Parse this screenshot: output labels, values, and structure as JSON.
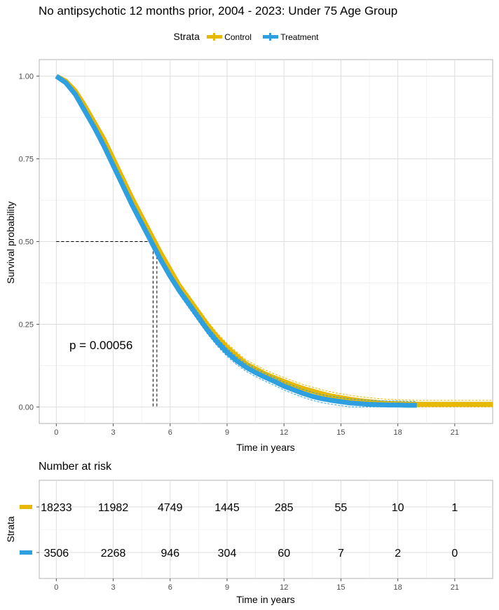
{
  "title": "No antipsychotic 12 months prior, 2004 - 2023: Under 75 Age Group",
  "legend": {
    "title": "Strata",
    "items": [
      {
        "label": "Control",
        "color": "#E7B800"
      },
      {
        "label": "Treatment",
        "color": "#2E9FDF"
      }
    ]
  },
  "chart_data": {
    "type": "line",
    "subtype": "kaplan-meier survival curve",
    "xlabel": "Time in years",
    "ylabel": "Survival probability",
    "xlim": [
      -0.9,
      23.0
    ],
    "ylim": [
      -0.05,
      1.05
    ],
    "x_ticks": [
      0,
      3,
      6,
      9,
      12,
      15,
      18,
      21
    ],
    "x_tick_labels": [
      "0",
      "3",
      "6",
      "9",
      "12",
      "15",
      "18",
      "21"
    ],
    "y_ticks": [
      0,
      0.25,
      0.5,
      0.75,
      1.0
    ],
    "y_tick_labels": [
      "0.00",
      "0.25",
      "0.50",
      "0.75",
      "1.00"
    ],
    "grid": true,
    "legend_position": "top",
    "series": [
      {
        "name": "Control",
        "color": "#E7B800",
        "x": [
          0,
          0.5,
          1,
          1.5,
          2,
          2.5,
          3,
          3.5,
          4,
          4.5,
          5,
          5.5,
          6,
          6.5,
          7,
          7.5,
          8,
          8.5,
          9,
          9.5,
          10,
          10.5,
          11,
          11.5,
          12,
          12.5,
          13,
          13.5,
          14,
          14.5,
          15,
          15.5,
          16,
          16.5,
          17,
          17.5,
          18,
          18.5,
          19,
          20,
          21,
          22,
          23
        ],
        "y": [
          1.0,
          0.985,
          0.955,
          0.91,
          0.86,
          0.81,
          0.75,
          0.69,
          0.63,
          0.575,
          0.52,
          0.465,
          0.415,
          0.365,
          0.325,
          0.285,
          0.245,
          0.21,
          0.18,
          0.155,
          0.13,
          0.115,
          0.1,
          0.088,
          0.077,
          0.066,
          0.056,
          0.048,
          0.04,
          0.033,
          0.028,
          0.023,
          0.019,
          0.016,
          0.013,
          0.011,
          0.01,
          0.009,
          0.008,
          0.008,
          0.008,
          0.008,
          0.008
        ]
      },
      {
        "name": "Treatment",
        "color": "#2E9FDF",
        "x": [
          0,
          0.5,
          1,
          1.5,
          2,
          2.5,
          3,
          3.5,
          4,
          4.5,
          5,
          5.5,
          6,
          6.5,
          7,
          7.5,
          8,
          8.5,
          9,
          9.5,
          10,
          10.5,
          11,
          11.5,
          12,
          12.5,
          13,
          13.5,
          14,
          14.5,
          15,
          15.5,
          16,
          16.5,
          17,
          17.5,
          18,
          18.5,
          19
        ],
        "y": [
          1.0,
          0.98,
          0.945,
          0.895,
          0.845,
          0.79,
          0.73,
          0.67,
          0.61,
          0.555,
          0.5,
          0.445,
          0.395,
          0.35,
          0.31,
          0.27,
          0.23,
          0.195,
          0.165,
          0.14,
          0.12,
          0.104,
          0.09,
          0.077,
          0.063,
          0.052,
          0.041,
          0.032,
          0.025,
          0.02,
          0.016,
          0.012,
          0.01,
          0.008,
          0.007,
          0.006,
          0.006,
          0.005,
          0.005
        ]
      }
    ],
    "median_lines": [
      {
        "series": "Control",
        "x": 5.3,
        "y": 0.5
      },
      {
        "series": "Treatment",
        "x": 5.1,
        "y": 0.5
      }
    ],
    "annotations": [
      {
        "text": "p = 0.00056",
        "x": 0.5,
        "y": 0.19
      }
    ]
  },
  "risk_table": {
    "title": "Number at risk",
    "ylabel": "Strata",
    "xlabel": "Time in years",
    "times": [
      "0",
      "3",
      "6",
      "9",
      "12",
      "15",
      "18",
      "21"
    ],
    "rows": [
      {
        "name": "Control",
        "color": "#E7B800",
        "values": [
          "18233",
          "11982",
          "4749",
          "1445",
          "285",
          "55",
          "10",
          "1"
        ]
      },
      {
        "name": "Treatment",
        "color": "#2E9FDF",
        "values": [
          "3506",
          "2268",
          "946",
          "304",
          "60",
          "7",
          "2",
          "0"
        ]
      }
    ]
  }
}
